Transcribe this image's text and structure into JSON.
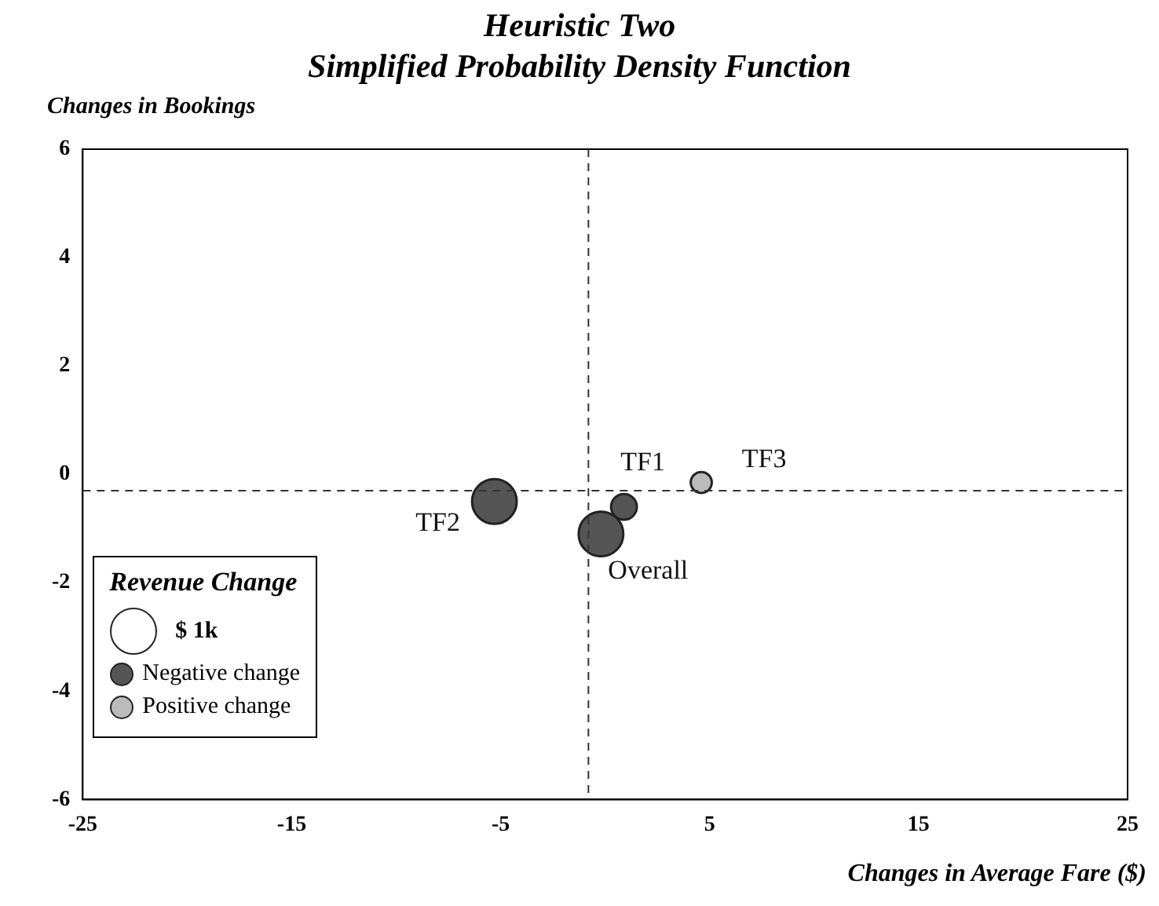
{
  "chart_data": {
    "type": "bubble",
    "title": "Heuristic Two",
    "subtitle": "Simplified Probability Density Function",
    "xlabel": "Changes in Average Fare ($)",
    "ylabel": "Changes in Bookings",
    "legend_title": "Revenue Change",
    "xlim": [
      -25,
      25
    ],
    "xticks": [
      -25,
      -15,
      -5,
      5,
      15,
      25
    ],
    "ylim": [
      -6,
      6
    ],
    "yticks": [
      -6,
      -4,
      -2,
      0,
      2,
      4,
      6
    ],
    "grid": false,
    "legend": "bottom left",
    "size_legend": [
      {
        "value": 1,
        "label": "$ 1k"
      }
    ],
    "series": [
      {
        "name": "Negative change",
        "color": "#555555",
        "x": [
          -5.3,
          -0.2,
          0.9
        ],
        "values": [
          -0.5,
          -1.1,
          -0.6
        ],
        "sizes": [
          0.9,
          0.9,
          0.3
        ]
      },
      {
        "name": "Positive change",
        "color": "#bbbbbb",
        "x": [
          4.6
        ],
        "values": [
          -0.15
        ],
        "sizes": [
          0.2
        ]
      }
    ],
    "ref_lines": [
      {
        "axis": "x",
        "value": -0.8,
        "line_style": "dashed"
      },
      {
        "axis": "y",
        "value": -0.3,
        "line_style": "dashed"
      }
    ],
    "annotations": [
      {
        "text": "TF2",
        "x": -5.3,
        "y": -0.5
      },
      {
        "text": "Overall",
        "x": -0.2,
        "y": -1.1
      },
      {
        "text": "TF1",
        "x": 0.9,
        "y": -0.6
      },
      {
        "text": "TF3",
        "x": 4.6,
        "y": -0.15
      }
    ]
  }
}
